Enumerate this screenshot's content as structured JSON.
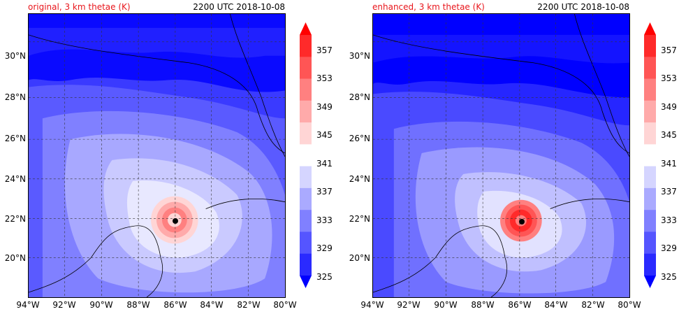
{
  "panels": [
    {
      "title_left": "original, 3 km thetae (K)",
      "title_right": "2200 UTC 2018-10-08"
    },
    {
      "title_left": "enhanced, 3 km thetae (K)",
      "title_right": "2200 UTC 2018-10-08"
    }
  ],
  "y_ticks": [
    "30°N",
    "28°N",
    "26°N",
    "24°N",
    "22°N",
    "20°N"
  ],
  "x_ticks": [
    "94°W",
    "92°W",
    "90°W",
    "88°W",
    "86°W",
    "84°W",
    "82°W",
    "80°W"
  ],
  "colorbar": {
    "labels": [
      "357",
      "353",
      "349",
      "345",
      "341",
      "337",
      "333",
      "329",
      "325"
    ],
    "colors": [
      "#ff0000",
      "#ff2a2a",
      "#ff5555",
      "#ff8080",
      "#ffaaaa",
      "#ffd5d5",
      "#ffffff",
      "#d5d5ff",
      "#aaaaff",
      "#8080ff",
      "#5555ff",
      "#2a2aff",
      "#0000ff"
    ]
  },
  "colors": {
    "title_accent": "#e8151b",
    "cold": "#0000ff",
    "warm": "#ff0000"
  },
  "icons": [
    "storm-center-marker-icon"
  ]
}
